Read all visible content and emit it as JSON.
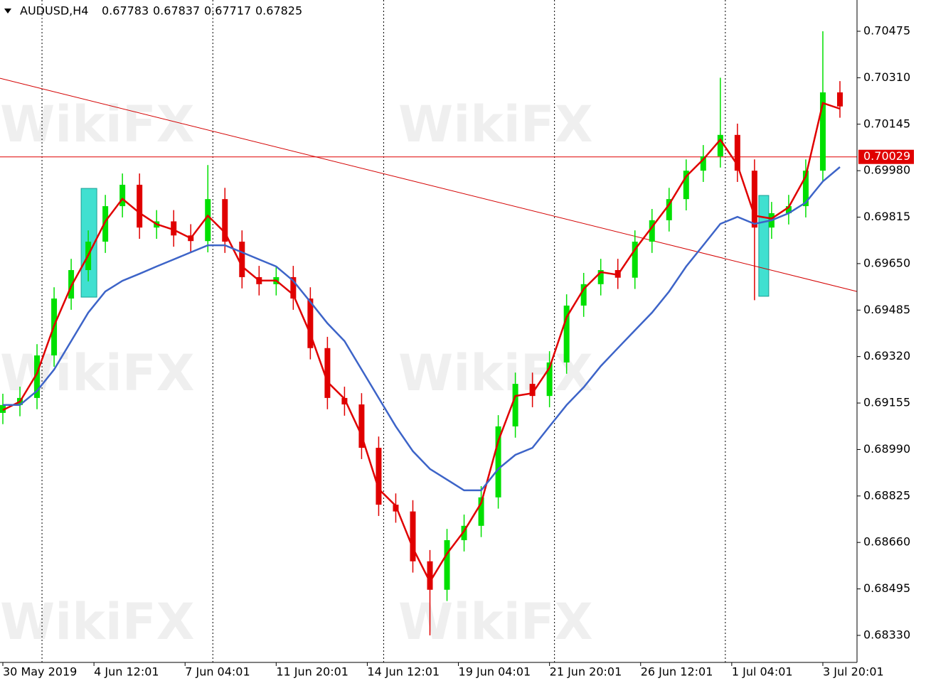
{
  "chart_data": {
    "type": "candlestick",
    "header": {
      "symbol": "AUDUSD,H4",
      "quote": [
        0.67783,
        0.67837,
        0.67717,
        0.67825
      ]
    },
    "watermark": "WikiFX",
    "xlim": [
      -0.5,
      150
    ],
    "ylim": [
      0.68234,
      0.70586
    ],
    "xticks": [
      {
        "value": 0,
        "label": "30 May 2019"
      },
      {
        "value": 16,
        "label": "4 Jun 12:01"
      },
      {
        "value": 32,
        "label": "7 Jun 04:01"
      },
      {
        "value": 48,
        "label": "11 Jun 20:01"
      },
      {
        "value": 64,
        "label": "14 Jun 12:01"
      },
      {
        "value": 80,
        "label": "19 Jun 04:01"
      },
      {
        "value": 96,
        "label": "21 Jun 20:01"
      },
      {
        "value": 112,
        "label": "26 Jun 12:01"
      },
      {
        "value": 128,
        "label": "1 Jul 04:01"
      },
      {
        "value": 144,
        "label": "3 Jul 20:01"
      }
    ],
    "yticks": [
      0.70475,
      {
        "value": 0.7031,
        "label": "0.70310"
      },
      0.70145,
      {
        "value": 0.6998,
        "label": "0.69980"
      },
      0.69815,
      {
        "value": 0.6965,
        "label": "0.69650"
      },
      0.69485,
      {
        "value": 0.6932,
        "label": "0.69320"
      },
      0.69155,
      {
        "value": 0.6899,
        "label": "0.68990"
      },
      0.68825,
      {
        "value": 0.6866,
        "label": "0.68660"
      },
      0.68495,
      {
        "value": 0.6833,
        "label": "0.68330"
      }
    ],
    "separators": [
      6.875,
      36.875,
      66.875,
      96.875,
      126.875
    ],
    "current_price": 0.70029,
    "current_price_color": "#e00000",
    "trendline": {
      "x": [
        -0.5,
        150
      ],
      "y": [
        0.70308,
        0.69551
      ],
      "color": "#d40000"
    },
    "highlight_boxes": [
      {
        "x": [
          13.75,
          16.5
        ],
        "y": [
          0.69531,
          0.69917
        ]
      },
      {
        "x": [
          132.75,
          134.5
        ],
        "y": [
          0.69534,
          0.69892
        ]
      }
    ],
    "highlight_color": "#40e0d0",
    "up_color": "#00e000",
    "down_color": "#e00000",
    "x": [
      0,
      3,
      6,
      9,
      12,
      15,
      18,
      21,
      24,
      27,
      30,
      33,
      36,
      39,
      42,
      45,
      48,
      51,
      54,
      57,
      60,
      63,
      66,
      69,
      72,
      75,
      78,
      81,
      84,
      87,
      90,
      93,
      96,
      99,
      102,
      105,
      108,
      111,
      114,
      117,
      120,
      123,
      126,
      129,
      132,
      135,
      138,
      141,
      144,
      147
    ],
    "open": [
      0.6912,
      0.69148,
      0.69173,
      0.69324,
      0.69526,
      0.69627,
      0.69728,
      0.69854,
      0.6993,
      0.69778,
      0.698,
      0.6975,
      0.6973,
      0.69879,
      0.69728,
      0.69602,
      0.69577,
      0.69602,
      0.69526,
      0.6935,
      0.69173,
      0.6915,
      0.68996,
      0.68794,
      0.6877,
      0.68593,
      0.68492,
      0.68668,
      0.68719,
      0.6882,
      0.69072,
      0.69223,
      0.6918,
      0.69299,
      0.69501,
      0.69577,
      0.69627,
      0.696,
      0.69728,
      0.69804,
      0.69879,
      0.6998,
      0.70031,
      0.70107,
      0.6998,
      0.69778,
      0.69829,
      0.69854,
      0.6998,
      0.70258
    ],
    "high": [
      0.69188,
      0.69213,
      0.69364,
      0.69566,
      0.69667,
      0.69768,
      0.69894,
      0.6997,
      0.6997,
      0.6984,
      0.6984,
      0.6979,
      0.7,
      0.69919,
      0.69768,
      0.69642,
      0.69642,
      0.69642,
      0.69566,
      0.6939,
      0.69213,
      0.6919,
      0.69036,
      0.68834,
      0.6881,
      0.68633,
      0.68708,
      0.68759,
      0.6886,
      0.69112,
      0.69263,
      0.69263,
      0.69339,
      0.69541,
      0.69617,
      0.69667,
      0.69667,
      0.69768,
      0.69844,
      0.69919,
      0.7002,
      0.70071,
      0.7031,
      0.70147,
      0.7002,
      0.69869,
      0.69894,
      0.7002,
      0.70475,
      0.70298
    ],
    "low": [
      0.6908,
      0.69108,
      0.69133,
      0.69284,
      0.69486,
      0.69587,
      0.69688,
      0.69814,
      0.69738,
      0.69738,
      0.6971,
      0.6969,
      0.6969,
      0.69688,
      0.69562,
      0.69537,
      0.69537,
      0.69486,
      0.6931,
      0.69133,
      0.6911,
      0.68956,
      0.68754,
      0.6873,
      0.68553,
      0.6833,
      0.68452,
      0.68628,
      0.68679,
      0.6878,
      0.69032,
      0.6914,
      0.6914,
      0.69259,
      0.69461,
      0.69537,
      0.6956,
      0.6956,
      0.69688,
      0.69764,
      0.69839,
      0.6994,
      0.69991,
      0.6994,
      0.6952,
      0.69738,
      0.69789,
      0.69814,
      0.6994,
      0.70168
    ],
    "close": [
      0.69148,
      0.69173,
      0.69324,
      0.69526,
      0.69627,
      0.69728,
      0.69854,
      0.6993,
      0.69778,
      0.698,
      0.6975,
      0.6973,
      0.69879,
      0.69728,
      0.69602,
      0.69577,
      0.69602,
      0.69526,
      0.6935,
      0.69173,
      0.6915,
      0.68996,
      0.68794,
      0.6877,
      0.68593,
      0.68492,
      0.68668,
      0.68719,
      0.6882,
      0.69072,
      0.69223,
      0.6918,
      0.69299,
      0.69501,
      0.69577,
      0.69627,
      0.696,
      0.69728,
      0.69804,
      0.69879,
      0.6998,
      0.70031,
      0.70107,
      0.6998,
      0.69778,
      0.69829,
      0.69854,
      0.6998,
      0.70258,
      0.70208
    ],
    "lines": [
      {
        "color": "#e00000",
        "values": [
          0.6913,
          0.6916,
          0.6926,
          0.6943,
          0.6957,
          0.6968,
          0.698,
          0.6988,
          0.6983,
          0.6979,
          0.6977,
          0.6974,
          0.6982,
          0.6976,
          0.6964,
          0.6959,
          0.6959,
          0.6954,
          0.694,
          0.6923,
          0.6917,
          0.6904,
          0.6885,
          0.6879,
          0.6864,
          0.6852,
          0.6862,
          0.687,
          0.688,
          0.6902,
          0.6918,
          0.6919,
          0.6928,
          0.6946,
          0.6956,
          0.6962,
          0.6961,
          0.697,
          0.6978,
          0.6986,
          0.6996,
          0.7002,
          0.7009,
          0.7,
          0.6982,
          0.6981,
          0.6985,
          0.6996,
          0.7022,
          0.702
        ]
      },
      {
        "color": "#3d64c8",
        "values": [
          0.69148,
          0.69148,
          0.69198,
          0.69274,
          0.69375,
          0.69476,
          0.69551,
          0.69589,
          0.69614,
          0.6964,
          0.69665,
          0.6969,
          0.69715,
          0.69715,
          0.6969,
          0.69665,
          0.6964,
          0.69589,
          0.69514,
          0.69438,
          0.69375,
          0.69274,
          0.69173,
          0.69072,
          0.68984,
          0.68921,
          0.68883,
          0.68845,
          0.68845,
          0.68921,
          0.68971,
          0.68996,
          0.69072,
          0.69148,
          0.69211,
          0.69286,
          0.6935,
          0.69413,
          0.69476,
          0.69551,
          0.6964,
          0.69715,
          0.69791,
          0.69816,
          0.69791,
          0.69804,
          0.69829,
          0.69867,
          0.69942,
          0.69993
        ]
      }
    ]
  }
}
